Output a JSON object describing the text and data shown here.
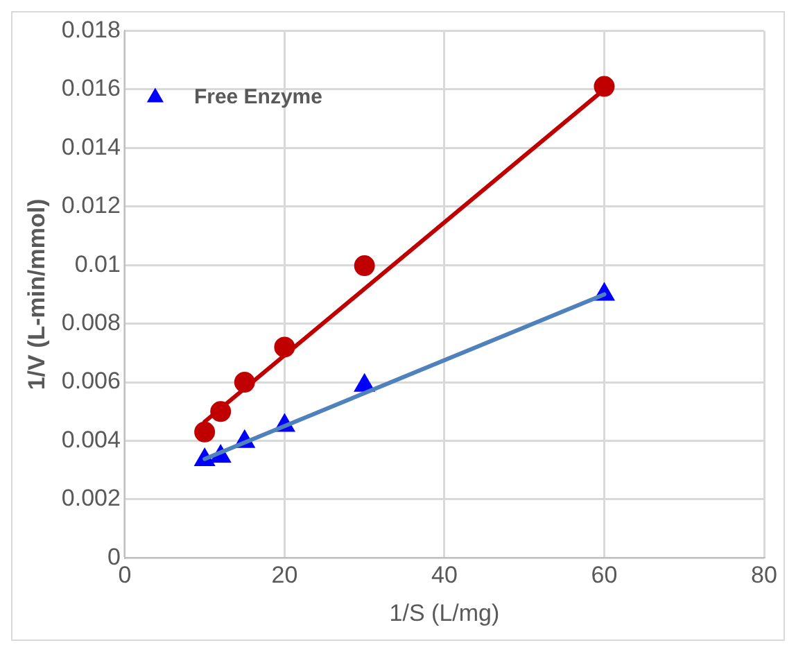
{
  "chart_data": {
    "type": "scatter",
    "xlabel": "1/S (L/mg)",
    "ylabel": "1/V (L-min/mmol)",
    "xlim": [
      0,
      80
    ],
    "xticks": [
      0,
      20,
      40,
      60,
      80
    ],
    "ylim": [
      0,
      0.018
    ],
    "yticks": [
      0,
      0.002,
      0.004,
      0.006,
      0.008,
      0.01,
      0.012,
      0.014,
      0.016,
      0.018
    ],
    "grid": true,
    "legend": "top left",
    "series": [
      {
        "type": "line",
        "color": "#c00000",
        "x": [
          10,
          60
        ],
        "values": [
          0.00465,
          0.016
        ],
        "marker": "none",
        "line_style": "solid"
      },
      {
        "type": "line",
        "color": "#4f81bd",
        "x": [
          10,
          60
        ],
        "values": [
          0.00338,
          0.009
        ],
        "marker": "none",
        "line_style": "solid"
      },
      {
        "type": "scatter",
        "color": "#c00000",
        "marker": "circle",
        "x": [
          10,
          12,
          15,
          20,
          30,
          60
        ],
        "values": [
          0.0043,
          0.005,
          0.006,
          0.0072,
          0.00998,
          0.0161
        ]
      },
      {
        "type": "scatter",
        "name": "Free Enzyme",
        "color": "#0000ff",
        "marker": "triangle",
        "x": [
          10,
          12,
          15,
          20,
          30,
          60
        ],
        "values": [
          0.00335,
          0.00347,
          0.00397,
          0.00452,
          0.00589,
          0.009
        ]
      }
    ]
  }
}
